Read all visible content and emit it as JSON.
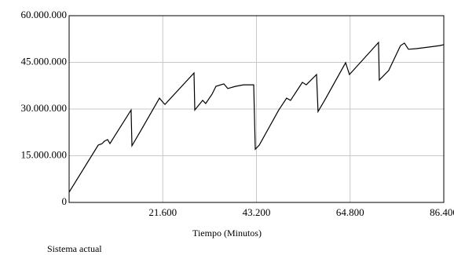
{
  "chart_data": {
    "type": "line",
    "x_label": "Tiempo (Minutos)",
    "caption": "Sistema actual",
    "xlim": [
      0,
      86400
    ],
    "xticks": [
      {
        "value": 21600,
        "label": "21.600"
      },
      {
        "value": 43200,
        "label": "43.200"
      },
      {
        "value": 64800,
        "label": "64.800"
      },
      {
        "value": 86400,
        "label": "86.400"
      }
    ],
    "ylim": [
      0,
      60000000
    ],
    "yticks": [
      0,
      {
        "value": 15000000,
        "label": "15.000.000"
      },
      {
        "value": 30000000,
        "label": "30.000.000"
      },
      {
        "value": 45000000,
        "label": "45.000.000"
      },
      {
        "value": 60000000,
        "label": "60.000.000"
      }
    ],
    "grid": true,
    "series": [
      {
        "color": "#000000",
        "x": [
          0,
          6700,
          7600,
          8150,
          8870,
          9420,
          10300,
          14300,
          14490,
          16660,
          20830,
          21550,
          22100,
          28800,
          28980,
          30800,
          31500,
          32960,
          33860,
          35680,
          36580,
          38400,
          40200,
          42560,
          42920,
          43830,
          48350,
          50160,
          51070,
          53790,
          54690,
          57050,
          57400,
          59220,
          63750,
          64650,
          71350,
          71530,
          73700,
          76420,
          77330,
          78240,
          80050,
          82760,
          85480,
          86400
        ],
        "values": [
          3300000,
          18400000,
          18900000,
          19700000,
          20200000,
          18900000,
          20900000,
          29700000,
          18200000,
          23400000,
          33500000,
          32300000,
          31500000,
          41600000,
          29700000,
          32800000,
          31800000,
          34800000,
          37300000,
          38100000,
          36600000,
          37300000,
          37800000,
          37800000,
          17100000,
          18400000,
          29700000,
          33500000,
          32800000,
          38600000,
          37800000,
          41100000,
          29200000,
          33500000,
          44900000,
          41100000,
          51400000,
          39300000,
          42400000,
          50400000,
          51200000,
          49200000,
          49400000,
          49900000,
          50400000,
          50700000
        ]
      }
    ]
  }
}
